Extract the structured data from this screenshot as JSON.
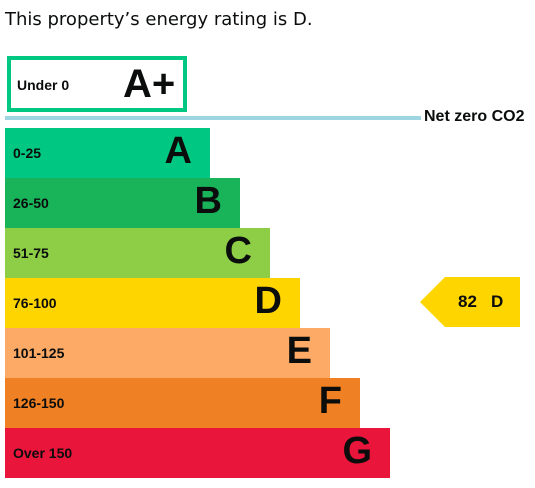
{
  "heading": "This property’s energy rating is D.",
  "aplus": {
    "range": "Under 0",
    "letter": "A+",
    "color": "#00c781"
  },
  "netzero": {
    "label": "Net zero CO2",
    "line_color": "#9fd5e0"
  },
  "chart_data": {
    "type": "bar",
    "title": "",
    "bands": [
      {
        "range": "0-25",
        "letter": "A",
        "color": "#00c781"
      },
      {
        "range": "26-50",
        "letter": "B",
        "color": "#19b459"
      },
      {
        "range": "51-75",
        "letter": "C",
        "color": "#8dce46"
      },
      {
        "range": "76-100",
        "letter": "D",
        "color": "#ffd500"
      },
      {
        "range": "101-125",
        "letter": "E",
        "color": "#fcaa65"
      },
      {
        "range": "126-150",
        "letter": "F",
        "color": "#ef8023"
      },
      {
        "range": "Over 150",
        "letter": "G",
        "color": "#e9153b"
      }
    ],
    "current": {
      "score": "82",
      "letter": "D",
      "band_index": 3,
      "color": "#ffd500"
    }
  }
}
